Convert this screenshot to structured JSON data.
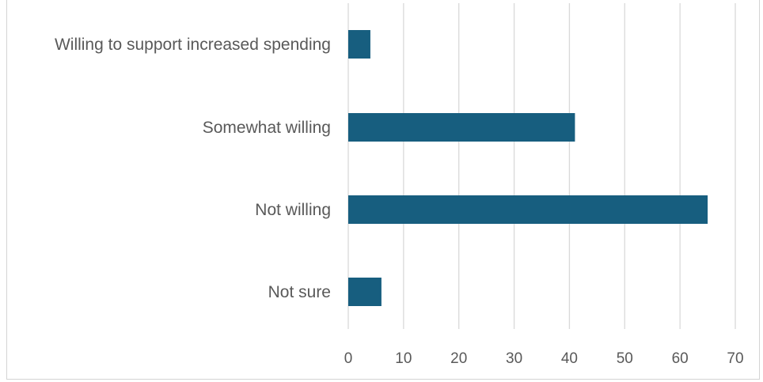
{
  "chart_data": {
    "type": "bar",
    "orientation": "horizontal",
    "categories": [
      "Willing to support increased spending",
      "Somewhat willing",
      "Not willing",
      "Not sure"
    ],
    "values": [
      4,
      41,
      65,
      6
    ],
    "xlim": [
      0,
      70
    ],
    "xticks": [
      "0",
      "10",
      "20",
      "30",
      "40",
      "50",
      "60",
      "70"
    ],
    "title": "",
    "xlabel": "",
    "ylabel": "",
    "grid": "vertical",
    "legend": "none",
    "bar_color": "#175e7f"
  }
}
